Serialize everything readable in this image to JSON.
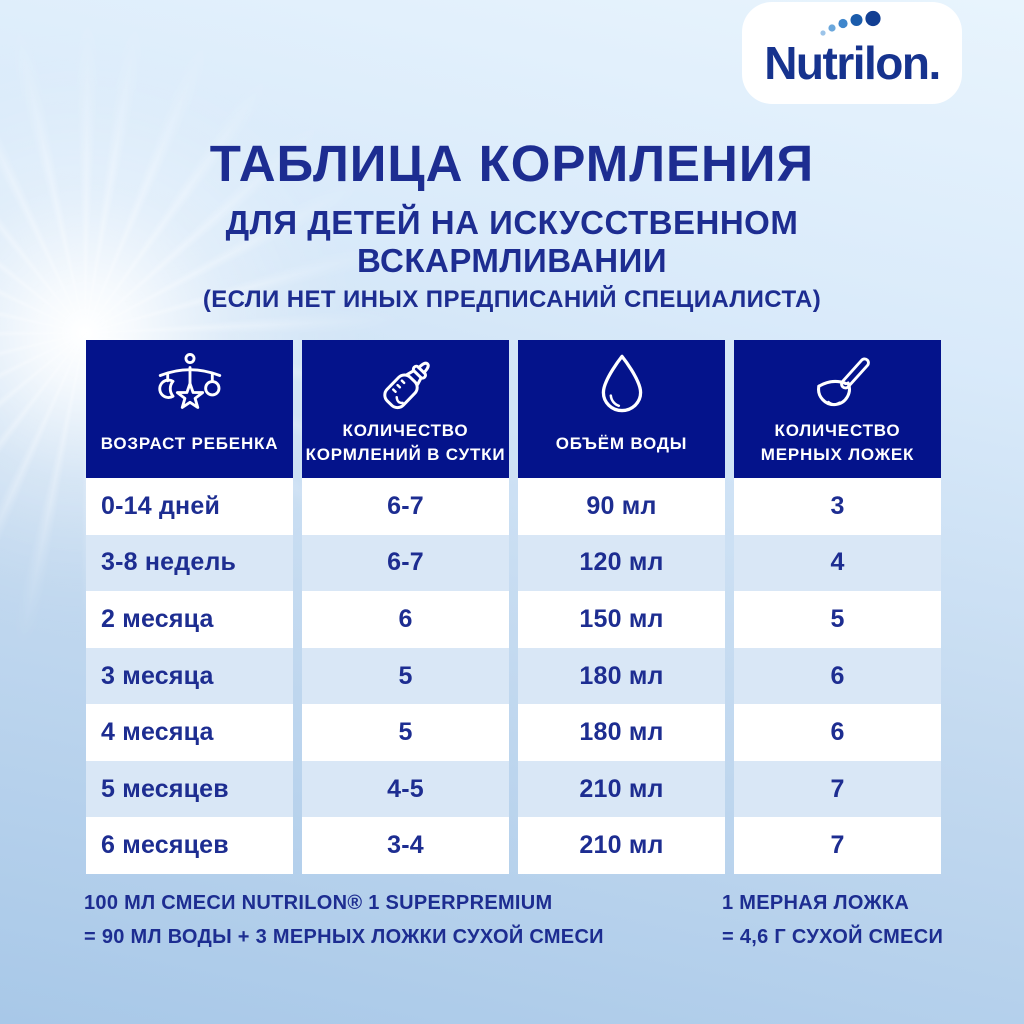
{
  "logo": {
    "text": "Nutrilon."
  },
  "header": {
    "title": "ТАБЛИЦА КОРМЛЕНИЯ",
    "subtitle": "ДЛЯ ДЕТЕЙ НА ИСКУССТВЕННОМ\nВСКАРМЛИВАНИИ",
    "note": "(ЕСЛИ НЕТ ИНЫХ ПРЕДПИСАНИЙ СПЕЦИАЛИСТА)"
  },
  "table": {
    "columns": [
      {
        "label": "ВОЗРАСТ РЕБЕНКА",
        "icon": "crib-mobile-icon"
      },
      {
        "label": "КОЛИЧЕСТВО\nКОРМЛЕНИЙ В СУТКИ",
        "icon": "baby-bottle-icon"
      },
      {
        "label": "ОБЪЁМ ВОДЫ",
        "icon": "water-drop-icon"
      },
      {
        "label": "КОЛИЧЕСТВО\nМЕРНЫХ ЛОЖЕК",
        "icon": "measuring-scoop-icon"
      }
    ],
    "rows": [
      {
        "age": "0-14 дней",
        "feedings": "6-7",
        "water": "90 мл",
        "scoops": "3"
      },
      {
        "age": "3-8 недель",
        "feedings": "6-7",
        "water": "120 мл",
        "scoops": "4"
      },
      {
        "age": "2 месяца",
        "feedings": "6",
        "water": "150 мл",
        "scoops": "5"
      },
      {
        "age": "3 месяца",
        "feedings": "5",
        "water": "180 мл",
        "scoops": "6"
      },
      {
        "age": "4 месяца",
        "feedings": "5",
        "water": "180 мл",
        "scoops": "6"
      },
      {
        "age": "5 месяцев",
        "feedings": "4-5",
        "water": "210 мл",
        "scoops": "7"
      },
      {
        "age": "6 месяцев",
        "feedings": "3-4",
        "water": "210 мл",
        "scoops": "7"
      }
    ]
  },
  "footnotes": {
    "left_line1": "100 МЛ СМЕСИ NUTRILON® 1 SUPERPREMIUM",
    "left_line2": "= 90 МЛ ВОДЫ + 3 МЕРНЫХ ЛОЖКИ СУХОЙ СМЕСИ",
    "right_line1": "1 МЕРНАЯ ЛОЖКА",
    "right_line2": "= 4,6 Г СУХОЙ СМЕСИ"
  },
  "colors": {
    "header_navy": "#04138b",
    "text_navy": "#1d2d91",
    "row_alt_blue": "#d9e7f6",
    "background_top": "#e8f4fd",
    "background_bottom": "#a8c8e8",
    "logo_text": "#16338e"
  },
  "chart_data": {
    "type": "table",
    "title": "ТАБЛИЦА КОРМЛЕНИЯ ДЛЯ ДЕТЕЙ НА ИСКУССТВЕННОМ ВСКАРМЛИВАНИИ",
    "columns": [
      "ВОЗРАСТ РЕБЕНКА",
      "КОЛИЧЕСТВО КОРМЛЕНИЙ В СУТКИ",
      "ОБЪЁМ ВОДЫ",
      "КОЛИЧЕСТВО МЕРНЫХ ЛОЖЕК"
    ],
    "rows": [
      [
        "0-14 дней",
        "6-7",
        "90 мл",
        "3"
      ],
      [
        "3-8 недель",
        "6-7",
        "120 мл",
        "4"
      ],
      [
        "2 месяца",
        "6",
        "150 мл",
        "5"
      ],
      [
        "3 месяца",
        "5",
        "180 мл",
        "6"
      ],
      [
        "4 месяца",
        "5",
        "180 мл",
        "6"
      ],
      [
        "5 месяцев",
        "4-5",
        "210 мл",
        "7"
      ],
      [
        "6 месяцев",
        "3-4",
        "210 мл",
        "7"
      ]
    ]
  }
}
